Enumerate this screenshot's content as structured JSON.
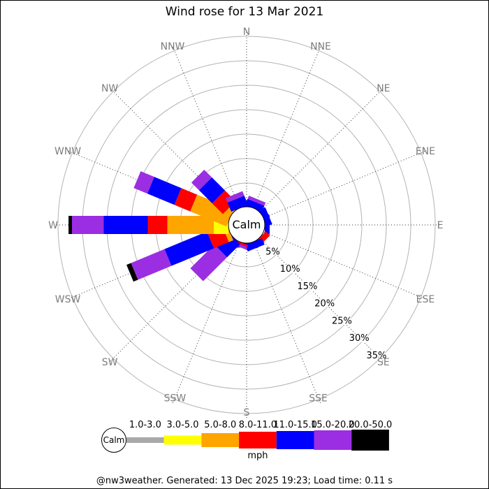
{
  "title": "Wind rose for 13 Mar 2021",
  "footer": "@nw3weather. Generated: 13 Dec 2025 19:23; Load time: 0.11 s",
  "calm_label": "Calm",
  "units_label": "mph",
  "colors": {
    "background": "#FFFFFF",
    "ring_line": "#B3B3B3",
    "spoke_line": "#333333",
    "compass_label": "#7D7D7D",
    "text": "#000000"
  },
  "chart_data": {
    "type": "bar",
    "subtype": "wind-rose-polar-stacked-bar",
    "title": "Wind rose for 13 Mar 2021",
    "units": "mph",
    "center_label": "Calm",
    "ring_step_percent": 5,
    "max_ring_percent": 35,
    "ring_labels": [
      "5%",
      "10%",
      "15%",
      "20%",
      "25%",
      "30%",
      "35%"
    ],
    "compass_labels": [
      "N",
      "NNE",
      "NE",
      "ENE",
      "E",
      "ESE",
      "SE",
      "SSE",
      "S",
      "SSW",
      "SW",
      "WSW",
      "W",
      "WNW",
      "NW",
      "NNW"
    ],
    "speed_bins": [
      {
        "label": "1.0-3.0",
        "color": "#A9A9A9",
        "legend_bar_height": 8
      },
      {
        "label": "3.0-5.0",
        "color": "#FFFF00",
        "legend_bar_height": 13
      },
      {
        "label": "5.0-8.0",
        "color": "#FFA500",
        "legend_bar_height": 20
      },
      {
        "label": "8.0-11.0",
        "color": "#FF0000",
        "legend_bar_height": 24
      },
      {
        "label": "11.0-15.0",
        "color": "#0000FF",
        "legend_bar_height": 26
      },
      {
        "label": "15.0-20.0",
        "color": "#9B2EE2",
        "legend_bar_height": 28
      },
      {
        "label": "20.0-50.0",
        "color": "#000000",
        "legend_bar_height": 30
      }
    ],
    "directions": [
      {
        "dir": "N",
        "segments": [
          {
            "bin": "11.0-15.0",
            "from": 0,
            "to": 0.9
          }
        ]
      },
      {
        "dir": "NNE",
        "segments": [
          {
            "bin": "11.0-15.0",
            "from": 0,
            "to": 1.3
          },
          {
            "bin": "15.0-20.0",
            "from": 1.3,
            "to": 2.0
          }
        ]
      },
      {
        "dir": "NE",
        "segments": [
          {
            "bin": "11.0-15.0",
            "from": 0,
            "to": 1.0
          }
        ]
      },
      {
        "dir": "ENE",
        "segments": [
          {
            "bin": "11.0-15.0",
            "from": 0,
            "to": 1.2
          }
        ]
      },
      {
        "dir": "E",
        "segments": [
          {
            "bin": "11.0-15.0",
            "from": 0,
            "to": 1.0
          }
        ]
      },
      {
        "dir": "ESE",
        "segments": []
      },
      {
        "dir": "SE",
        "segments": [
          {
            "bin": "8.0-11.0",
            "from": 0,
            "to": 1.2
          }
        ]
      },
      {
        "dir": "SSE",
        "segments": [
          {
            "bin": "11.0-15.0",
            "from": 0,
            "to": 1.4
          }
        ]
      },
      {
        "dir": "S",
        "segments": [
          {
            "bin": "11.0-15.0",
            "from": 0,
            "to": 0.9
          }
        ]
      },
      {
        "dir": "SSW",
        "segments": [
          {
            "bin": "8.0-11.0",
            "from": 0,
            "to": 0.4
          },
          {
            "bin": "15.0-20.0",
            "from": 0.4,
            "to": 1.0
          }
        ]
      },
      {
        "dir": "SW",
        "segments": [
          {
            "bin": "11.0-15.0",
            "from": 0,
            "to": 3.8
          },
          {
            "bin": "15.0-20.0",
            "from": 3.8,
            "to": 10.7
          }
        ]
      },
      {
        "dir": "WSW",
        "segments": [
          {
            "bin": "5.0-8.0",
            "from": 0,
            "to": 1.0
          },
          {
            "bin": "8.0-11.0",
            "from": 1.0,
            "to": 4.3
          },
          {
            "bin": "11.0-15.0",
            "from": 4.3,
            "to": 13.7
          },
          {
            "bin": "15.0-20.0",
            "from": 13.7,
            "to": 21.1
          },
          {
            "bin": "20.0-50.0",
            "from": 21.1,
            "to": 22.1
          }
        ]
      },
      {
        "dir": "W",
        "segments": [
          {
            "bin": "3.0-5.0",
            "from": 0,
            "to": 3.0
          },
          {
            "bin": "5.0-8.0",
            "from": 3.0,
            "to": 12.5
          },
          {
            "bin": "8.0-11.0",
            "from": 12.5,
            "to": 16.5
          },
          {
            "bin": "11.0-15.0",
            "from": 16.5,
            "to": 25.5
          },
          {
            "bin": "15.0-20.0",
            "from": 25.5,
            "to": 32.0
          },
          {
            "bin": "20.0-50.0",
            "from": 32.0,
            "to": 32.7
          }
        ]
      },
      {
        "dir": "WNW",
        "segments": [
          {
            "bin": "5.0-8.0",
            "from": 0,
            "to": 8.0
          },
          {
            "bin": "8.0-11.0",
            "from": 8.0,
            "to": 11.5
          },
          {
            "bin": "11.0-15.0",
            "from": 11.5,
            "to": 17.5
          },
          {
            "bin": "15.0-20.0",
            "from": 17.5,
            "to": 20.5
          }
        ]
      },
      {
        "dir": "NW",
        "segments": [
          {
            "bin": "5.0-8.0",
            "from": 0,
            "to": 1.3
          },
          {
            "bin": "8.0-11.0",
            "from": 1.3,
            "to": 4.4
          },
          {
            "bin": "11.0-15.0",
            "from": 4.4,
            "to": 8.2
          },
          {
            "bin": "15.0-20.0",
            "from": 8.2,
            "to": 10.4
          }
        ]
      },
      {
        "dir": "NNW",
        "segments": [
          {
            "bin": "11.0-15.0",
            "from": 0,
            "to": 2.0
          },
          {
            "bin": "15.0-20.0",
            "from": 2.0,
            "to": 3.0
          }
        ]
      }
    ]
  }
}
